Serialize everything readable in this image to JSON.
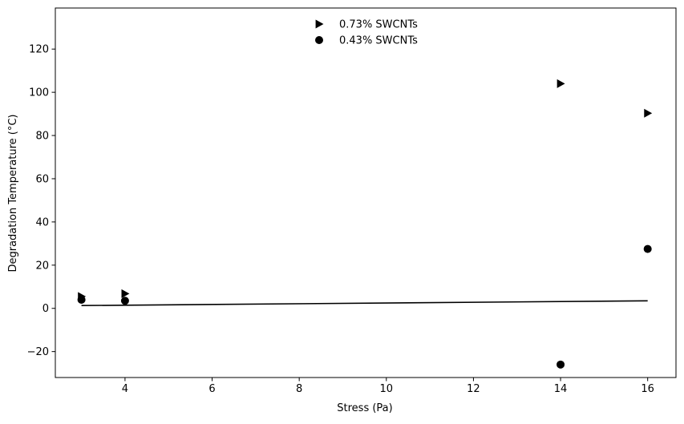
{
  "chart_data": {
    "type": "scatter",
    "title": "",
    "xlabel": "Stress (Pa)",
    "ylabel": "Degradation Temperature (°C)",
    "xlim": [
      2.4,
      16.65
    ],
    "ylim": [
      -32,
      139
    ],
    "xticks": [
      4,
      6,
      8,
      10,
      12,
      14,
      16
    ],
    "xtick_labels": [
      "4",
      "6",
      "8",
      "10",
      "12",
      "14",
      "16"
    ],
    "yticks": [
      -20,
      0,
      20,
      40,
      60,
      80,
      100,
      120
    ],
    "ytick_labels": [
      "−20",
      "0",
      "20",
      "40",
      "60",
      "80",
      "100",
      "120"
    ],
    "grid": false,
    "legend_position": "top-center",
    "series": [
      {
        "name": "0.73% SWCNTs",
        "marker": "triangle-right",
        "color": "#000000",
        "points": [
          {
            "x": 3,
            "y": 5.5
          },
          {
            "x": 4,
            "y": 6.8
          },
          {
            "x": 14,
            "y": 104
          },
          {
            "x": 16,
            "y": 90.3
          }
        ]
      },
      {
        "name": "0.43% SWCNTs",
        "marker": "circle",
        "color": "#000000",
        "points": [
          {
            "x": 3,
            "y": 4
          },
          {
            "x": 4,
            "y": 3.5
          },
          {
            "x": 14,
            "y": -26
          },
          {
            "x": 16,
            "y": 27.5
          }
        ]
      }
    ],
    "lines": [
      {
        "marker": "none",
        "color": "#000000",
        "points": [
          {
            "x": 3,
            "y": 1.3
          },
          {
            "x": 16,
            "y": 3.5
          }
        ]
      }
    ]
  }
}
